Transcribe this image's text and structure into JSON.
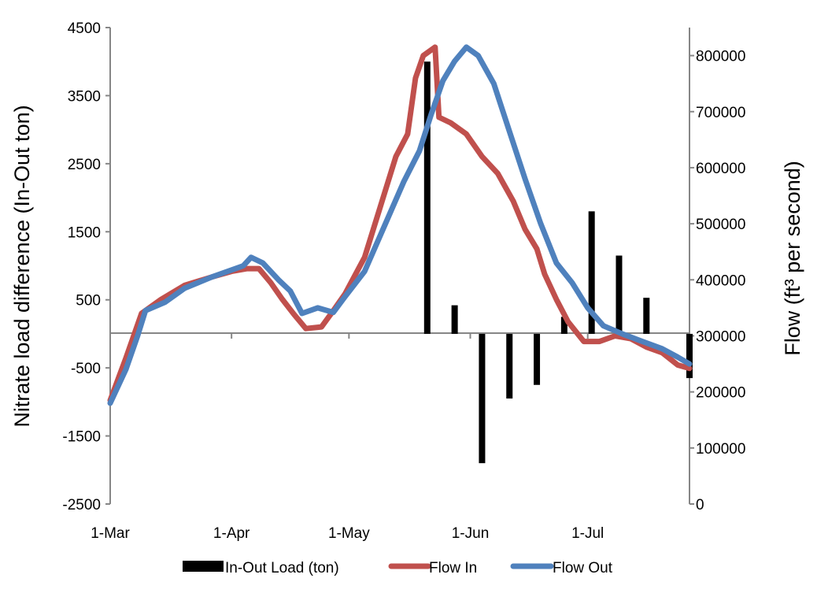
{
  "chart_data": {
    "type": "bar+line",
    "title": "",
    "xlabel": "",
    "ylabel_left": "Nitrate load difference (In-Out ton)",
    "ylabel_right": "Flow (ft³ per second)",
    "left_axis": {
      "min": -2500,
      "max": 4500,
      "ticks": [
        "4500",
        "3500",
        "2500",
        "1500",
        "500",
        "-500",
        "-1500",
        "-2500"
      ]
    },
    "right_axis": {
      "min": 0,
      "max": 850000,
      "ticks": [
        "800000",
        "700000",
        "600000",
        "500000",
        "400000",
        "300000",
        "200000",
        "100000",
        "0"
      ]
    },
    "x_axis": {
      "start": "1-Mar",
      "end": "27-Jul",
      "tick_labels": [
        "1-Mar",
        "1-Apr",
        "1-May",
        "1-Jun",
        "1-Jul"
      ]
    },
    "legend": {
      "position": "bottom",
      "entries": [
        "In-Out Load (ton)",
        "Flow In",
        "Flow Out"
      ]
    },
    "colors": {
      "load": "#000000",
      "flow_in": "#c0504d",
      "flow_out": "#4f81bd",
      "axis": "#868686"
    },
    "series": [
      {
        "name": "In-Out Load (ton)",
        "kind": "bar",
        "axis": "left",
        "points": [
          {
            "x": "21-May",
            "y": 4000
          },
          {
            "x": "28-May",
            "y": 420
          },
          {
            "x": "4-Jun",
            "y": -1900
          },
          {
            "x": "11-Jun",
            "y": -950
          },
          {
            "x": "18-Jun",
            "y": -750
          },
          {
            "x": "25-Jun",
            "y": 250
          },
          {
            "x": "2-Jul",
            "y": 1800
          },
          {
            "x": "9-Jul",
            "y": 1150
          },
          {
            "x": "16-Jul",
            "y": 530
          },
          {
            "x": "27-Jul",
            "y": -650
          }
        ]
      },
      {
        "name": "Flow In",
        "kind": "line",
        "axis": "right",
        "points": [
          {
            "x": "1-Mar",
            "y": 185000
          },
          {
            "x": "5-Mar",
            "y": 260000
          },
          {
            "x": "9-Mar",
            "y": 340000
          },
          {
            "x": "14-Mar",
            "y": 365000
          },
          {
            "x": "20-Mar",
            "y": 390000
          },
          {
            "x": "27-Mar",
            "y": 405000
          },
          {
            "x": "1-Apr",
            "y": 415000
          },
          {
            "x": "5-Apr",
            "y": 420000
          },
          {
            "x": "8-Apr",
            "y": 420000
          },
          {
            "x": "11-Apr",
            "y": 395000
          },
          {
            "x": "14-Apr",
            "y": 365000
          },
          {
            "x": "17-Apr",
            "y": 338000
          },
          {
            "x": "20-Apr",
            "y": 313000
          },
          {
            "x": "24-Apr",
            "y": 316000
          },
          {
            "x": "27-Apr",
            "y": 345000
          },
          {
            "x": "30-Apr",
            "y": 375000
          },
          {
            "x": "5-May",
            "y": 440000
          },
          {
            "x": "9-May",
            "y": 530000
          },
          {
            "x": "13-May",
            "y": 620000
          },
          {
            "x": "16-May",
            "y": 660000
          },
          {
            "x": "18-May",
            "y": 760000
          },
          {
            "x": "20-May",
            "y": 800000
          },
          {
            "x": "23-May",
            "y": 815000
          },
          {
            "x": "24-May",
            "y": 690000
          },
          {
            "x": "27-May",
            "y": 680000
          },
          {
            "x": "31-May",
            "y": 660000
          },
          {
            "x": "4-Jun",
            "y": 620000
          },
          {
            "x": "8-Jun",
            "y": 590000
          },
          {
            "x": "12-Jun",
            "y": 540000
          },
          {
            "x": "15-Jun",
            "y": 490000
          },
          {
            "x": "18-Jun",
            "y": 455000
          },
          {
            "x": "20-Jun",
            "y": 410000
          },
          {
            "x": "23-Jun",
            "y": 365000
          },
          {
            "x": "26-Jun",
            "y": 325000
          },
          {
            "x": "30-Jun",
            "y": 290000
          },
          {
            "x": "4-Jul",
            "y": 290000
          },
          {
            "x": "8-Jul",
            "y": 300000
          },
          {
            "x": "12-Jul",
            "y": 295000
          },
          {
            "x": "16-Jul",
            "y": 280000
          },
          {
            "x": "20-Jul",
            "y": 270000
          },
          {
            "x": "24-Jul",
            "y": 248000
          },
          {
            "x": "27-Jul",
            "y": 242000
          }
        ]
      },
      {
        "name": "Flow Out",
        "kind": "line",
        "axis": "right",
        "points": [
          {
            "x": "1-Mar",
            "y": 180000
          },
          {
            "x": "5-Mar",
            "y": 240000
          },
          {
            "x": "8-Mar",
            "y": 300000
          },
          {
            "x": "10-Mar",
            "y": 345000
          },
          {
            "x": "15-Mar",
            "y": 360000
          },
          {
            "x": "20-Mar",
            "y": 385000
          },
          {
            "x": "27-Mar",
            "y": 405000
          },
          {
            "x": "4-Apr",
            "y": 425000
          },
          {
            "x": "6-Apr",
            "y": 440000
          },
          {
            "x": "9-Apr",
            "y": 430000
          },
          {
            "x": "13-Apr",
            "y": 400000
          },
          {
            "x": "16-Apr",
            "y": 380000
          },
          {
            "x": "19-Apr",
            "y": 340000
          },
          {
            "x": "23-Apr",
            "y": 350000
          },
          {
            "x": "27-Apr",
            "y": 342000
          },
          {
            "x": "30-Apr",
            "y": 370000
          },
          {
            "x": "5-May",
            "y": 415000
          },
          {
            "x": "10-May",
            "y": 495000
          },
          {
            "x": "15-May",
            "y": 575000
          },
          {
            "x": "19-May",
            "y": 630000
          },
          {
            "x": "22-May",
            "y": 695000
          },
          {
            "x": "25-May",
            "y": 755000
          },
          {
            "x": "28-May",
            "y": 790000
          },
          {
            "x": "31-May",
            "y": 815000
          },
          {
            "x": "3-Jun",
            "y": 800000
          },
          {
            "x": "7-Jun",
            "y": 750000
          },
          {
            "x": "11-Jun",
            "y": 665000
          },
          {
            "x": "15-Jun",
            "y": 580000
          },
          {
            "x": "19-Jun",
            "y": 500000
          },
          {
            "x": "23-Jun",
            "y": 430000
          },
          {
            "x": "27-Jun",
            "y": 395000
          },
          {
            "x": "1-Jul",
            "y": 350000
          },
          {
            "x": "5-Jul",
            "y": 318000
          },
          {
            "x": "10-Jul",
            "y": 303000
          },
          {
            "x": "15-Jul",
            "y": 290000
          },
          {
            "x": "20-Jul",
            "y": 277000
          },
          {
            "x": "24-Jul",
            "y": 262000
          },
          {
            "x": "27-Jul",
            "y": 250000
          }
        ]
      }
    ]
  }
}
